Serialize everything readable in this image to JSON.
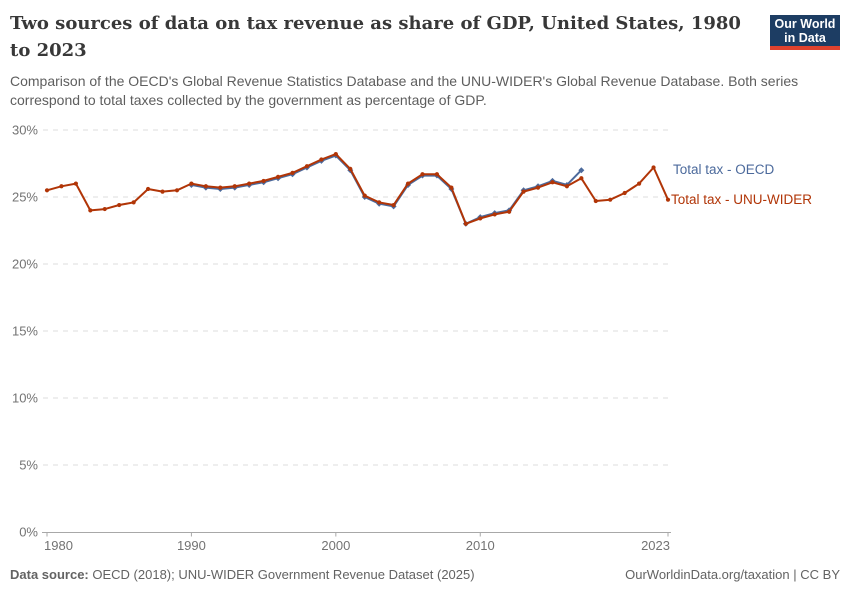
{
  "logo": {
    "text_line1": "Our World",
    "text_line2": "in Data",
    "bg_color": "#1d3d63",
    "stripe_color": "#e0422d"
  },
  "chart_data": {
    "type": "line",
    "title": "Two sources of data on tax revenue as share of GDP, United States, 1980 to 2023",
    "subtitle": "Comparison of the OECD's Global Revenue Statistics Database and the UNU-WIDER's Global Revenue Database. Both series correspond to total taxes collected by the government as percentage of GDP.",
    "xlabel": "",
    "ylabel": "",
    "xlim": [
      1980,
      2023
    ],
    "ylim": [
      0,
      30
    ],
    "yticks": [
      0,
      5,
      10,
      15,
      20,
      25,
      30
    ],
    "ytick_suffix": "%",
    "xticks": [
      1980,
      1990,
      2000,
      2010,
      2023
    ],
    "grid": "horizontal-dashed",
    "legend_position": "right-of-line-ends",
    "series": [
      {
        "name": "Total tax - OECD",
        "color": "#4c6a9c",
        "marker": "diamond",
        "x": [
          1990,
          1991,
          1992,
          1993,
          1994,
          1995,
          1996,
          1997,
          1998,
          1999,
          2000,
          2001,
          2002,
          2003,
          2004,
          2005,
          2006,
          2007,
          2008,
          2009,
          2010,
          2011,
          2012,
          2013,
          2014,
          2015,
          2016,
          2017
        ],
        "values": [
          25.9,
          25.7,
          25.6,
          25.7,
          25.9,
          26.1,
          26.4,
          26.7,
          27.2,
          27.7,
          28.1,
          27.0,
          25.0,
          24.5,
          24.3,
          25.9,
          26.6,
          26.6,
          25.6,
          23.0,
          23.5,
          23.8,
          24.0,
          25.5,
          25.8,
          26.2,
          25.9,
          27.0
        ]
      },
      {
        "name": "Total tax - UNU-WIDER",
        "color": "#b13507",
        "marker": "circle",
        "x": [
          1980,
          1981,
          1982,
          1983,
          1984,
          1985,
          1986,
          1987,
          1988,
          1989,
          1990,
          1991,
          1992,
          1993,
          1994,
          1995,
          1996,
          1997,
          1998,
          1999,
          2000,
          2001,
          2002,
          2003,
          2004,
          2005,
          2006,
          2007,
          2008,
          2009,
          2010,
          2011,
          2012,
          2013,
          2014,
          2015,
          2016,
          2017,
          2018,
          2019,
          2020,
          2021,
          2022,
          2023
        ],
        "values": [
          25.5,
          25.8,
          26.0,
          24.0,
          24.1,
          24.4,
          24.6,
          25.6,
          25.4,
          25.5,
          26.0,
          25.8,
          25.7,
          25.8,
          26.0,
          26.2,
          26.5,
          26.8,
          27.3,
          27.8,
          28.2,
          27.1,
          25.1,
          24.6,
          24.4,
          26.0,
          26.7,
          26.7,
          25.7,
          23.0,
          23.4,
          23.7,
          23.9,
          25.4,
          25.7,
          26.1,
          25.8,
          26.4,
          24.7,
          24.8,
          25.3,
          26.0,
          27.2,
          24.8
        ]
      }
    ]
  },
  "footer": {
    "datasource_label": "Data source:",
    "datasource_text": "OECD (2018); UNU-WIDER Government Revenue Dataset (2025)",
    "link_text": "OurWorldinData.org/taxation",
    "divider": "|",
    "license_text": "CC BY"
  }
}
